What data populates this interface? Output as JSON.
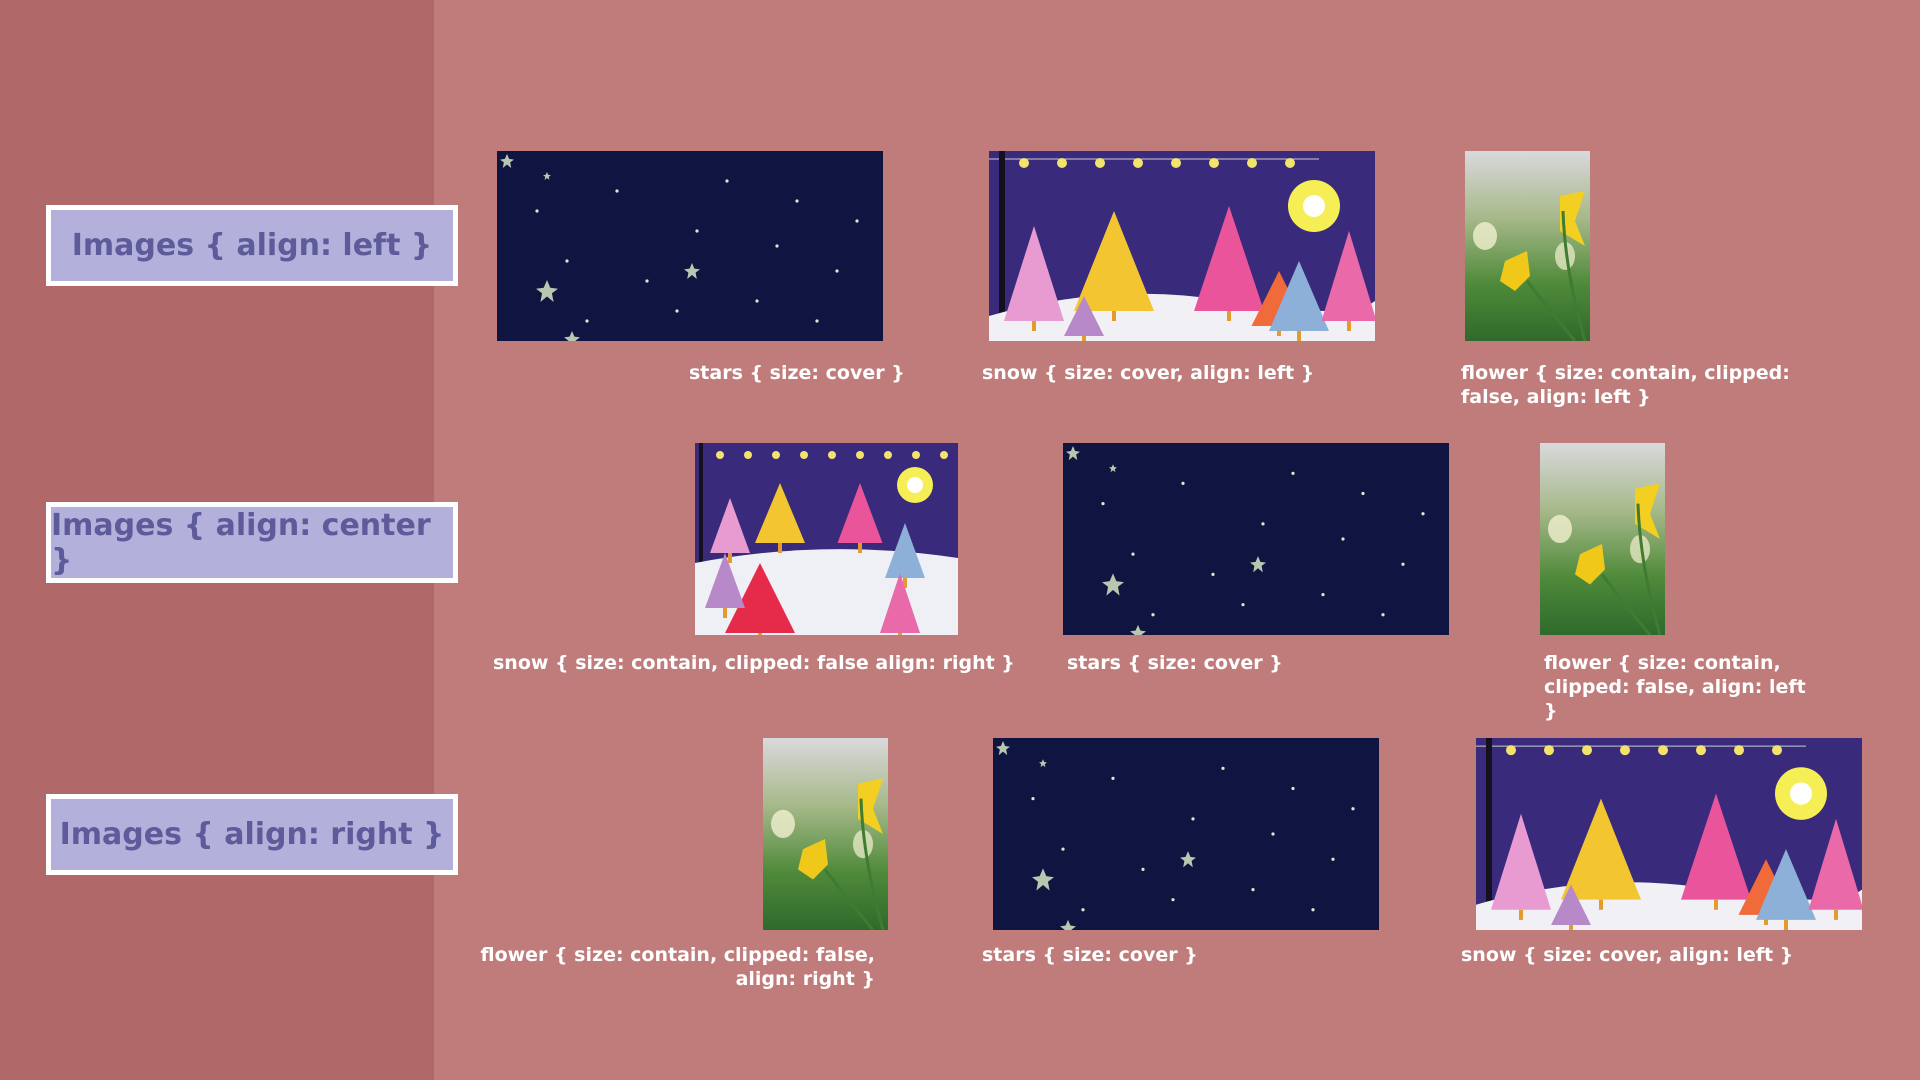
{
  "rows": [
    {
      "label": "Images { align: left }"
    },
    {
      "label": "Images { align: center }"
    },
    {
      "label": "Images { align: right }"
    }
  ],
  "captions": {
    "r1_stars": "stars { size: cover }",
    "r1_snow": "snow { size: cover, align: left }",
    "r1_flower": "flower { size: contain, clipped: false, align: left }",
    "r2_snow": "snow { size: contain, clipped: false align: right }",
    "r2_stars": "stars { size: cover }",
    "r2_flower": "flower { size: contain, clipped: false, align: left }",
    "r3_flower": "flower { size: contain, clipped: false, align: right }",
    "r3_stars": "stars { size: cover }",
    "r3_snow": "snow { size: cover, align: left }"
  },
  "colors": {
    "background": "#c07c7b",
    "sidebar": "#b06968",
    "label_fill": "#b4b0dc",
    "label_text": "#5d5b99",
    "night_sky": "#0f1540"
  }
}
